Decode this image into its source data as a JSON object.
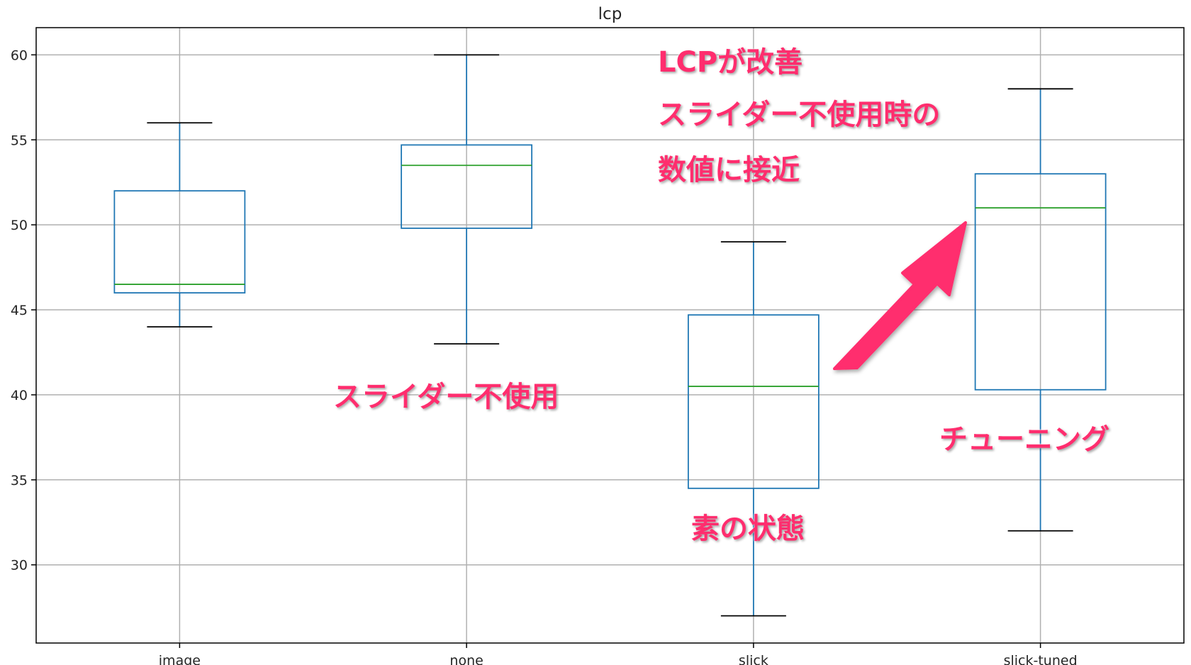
{
  "chart_data": {
    "type": "box",
    "title": "lcp",
    "xlabel": "",
    "ylabel": "",
    "categories": [
      "image",
      "none",
      "slick",
      "slick-tuned"
    ],
    "boxes": [
      {
        "category": "image",
        "whisker_low": 44,
        "q1": 46,
        "median": 46.5,
        "q3": 52,
        "whisker_high": 56
      },
      {
        "category": "none",
        "whisker_low": 43,
        "q1": 49.8,
        "median": 53.5,
        "q3": 54.7,
        "whisker_high": 60
      },
      {
        "category": "slick",
        "whisker_low": 27,
        "q1": 34.5,
        "median": 40.5,
        "q3": 44.7,
        "whisker_high": 49
      },
      {
        "category": "slick-tuned",
        "whisker_low": 32,
        "q1": 40.3,
        "median": 51,
        "q3": 53,
        "whisker_high": 58
      }
    ],
    "ylim": [
      25.4,
      61.6
    ],
    "yticks": [
      30,
      35,
      40,
      45,
      50,
      55,
      60
    ],
    "grid": true,
    "colors": {
      "box": "#1f77b4",
      "median": "#2ca02c",
      "whisker_cap": "#000000",
      "grid": "#b0b0b0",
      "annotation": "#ff2d6e"
    }
  },
  "annotations": {
    "improved_line1": "LCPが改善",
    "improved_line2": "スライダー不使用時の",
    "improved_line3": "数値に接近",
    "no_slider": "スライダー不使用",
    "raw_state": "素の状態",
    "tuning": "チューニング"
  }
}
